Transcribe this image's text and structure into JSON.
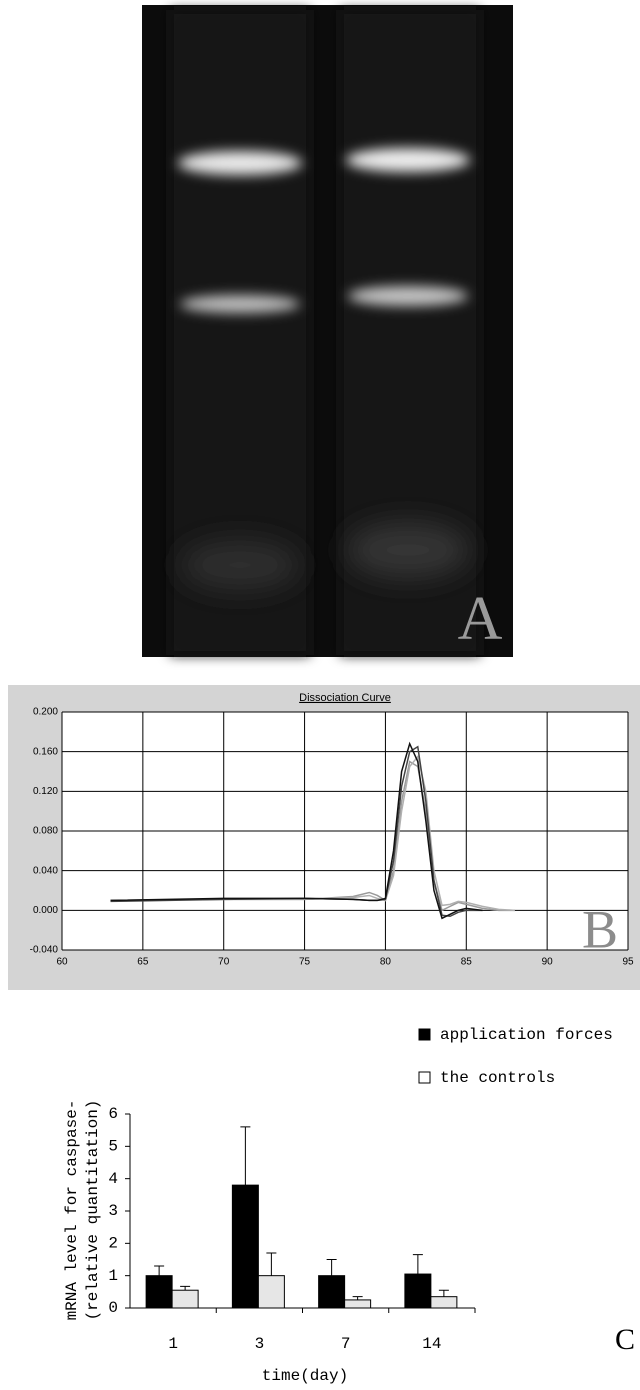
{
  "panel_a": {
    "label": "A"
  },
  "chart_data": [
    {
      "type": "line",
      "title": "Dissociation Curve",
      "panel_label": "B",
      "x": [
        63,
        70,
        75,
        78,
        79,
        79.5,
        80,
        80.5,
        81,
        81.5,
        82,
        82.5,
        83,
        83.5,
        84,
        84.5,
        85,
        86,
        87,
        88
      ],
      "series": [
        {
          "color": "#9a9a9a",
          "values": [
            0.01,
            0.011,
            0.011,
            0.014,
            0.018,
            0.015,
            0.01,
            0.04,
            0.11,
            0.15,
            0.145,
            0.1,
            0.03,
            0.0,
            0.004,
            0.008,
            0.006,
            0.002,
            0.0,
            0.0
          ]
        },
        {
          "color": "#b0b0b0",
          "values": [
            0.01,
            0.011,
            0.011,
            0.013,
            0.015,
            0.012,
            0.01,
            0.035,
            0.1,
            0.145,
            0.155,
            0.12,
            0.04,
            0.005,
            0.006,
            0.009,
            0.008,
            0.004,
            0.001,
            0.0
          ]
        },
        {
          "color": "#444444",
          "values": [
            0.009,
            0.011,
            0.012,
            0.011,
            0.01,
            0.01,
            0.011,
            0.05,
            0.125,
            0.16,
            0.165,
            0.11,
            0.03,
            -0.005,
            -0.006,
            -0.002,
            0.0,
            0.0,
            null,
            null
          ]
        },
        {
          "color": "#111111",
          "values": [
            0.01,
            0.012,
            0.012,
            0.011,
            0.01,
            0.01,
            0.012,
            0.06,
            0.14,
            0.168,
            0.15,
            0.09,
            0.02,
            -0.008,
            -0.004,
            0.0,
            0.002,
            0.0,
            null,
            null
          ]
        }
      ],
      "xlim": [
        60,
        95
      ],
      "xticks": [
        60,
        65,
        70,
        75,
        80,
        85,
        90,
        95
      ],
      "ylim": [
        -0.04,
        0.2
      ],
      "yticks": [
        {
          "value": -0.04,
          "label": "-0.040"
        },
        {
          "value": 0,
          "label": "0.000"
        },
        {
          "value": 0.04,
          "label": "0.040"
        },
        {
          "value": 0.08,
          "label": "0.080"
        },
        {
          "value": 0.12,
          "label": "0.120"
        },
        {
          "value": 0.16,
          "label": "0.160"
        },
        {
          "value": 0.2,
          "label": "0.200"
        }
      ],
      "grid": true
    },
    {
      "type": "bar",
      "panel_label": "C",
      "y_label": [
        "mRNA level for caspase-",
        "(relative quantitation)"
      ],
      "x_label": "time(day)",
      "categories": [
        "1",
        "3",
        "7",
        "14"
      ],
      "series": [
        {
          "name": "application forces",
          "color": "#000000",
          "values": [
            1,
            3.8,
            1,
            1.05
          ],
          "errors": [
            0.3,
            1.8,
            0.5,
            0.6
          ]
        },
        {
          "name": "the controls",
          "color": "#e6e6e6",
          "values": [
            0.55,
            1,
            0.25,
            0.35
          ],
          "errors": [
            0.12,
            0.7,
            0.1,
            0.2
          ]
        }
      ],
      "ylim": [
        0,
        6
      ],
      "yticks": [
        0,
        1,
        2,
        3,
        4,
        5,
        6
      ],
      "legend": "top-right"
    }
  ]
}
